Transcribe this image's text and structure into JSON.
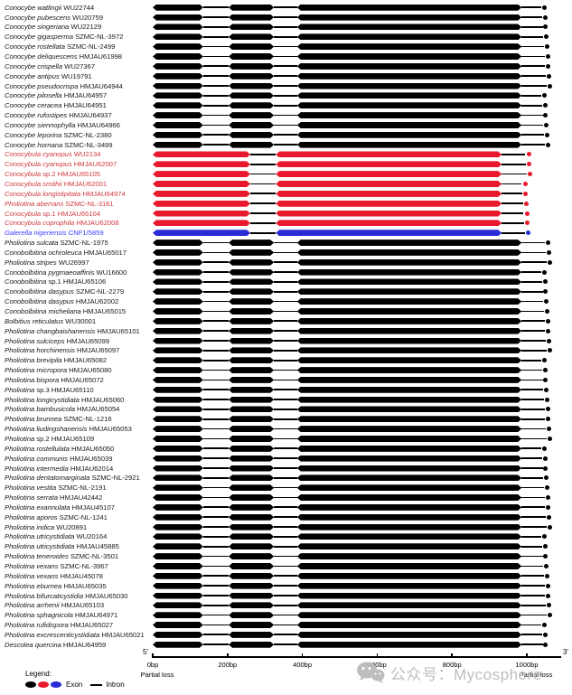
{
  "colors": {
    "exon": {
      "black": "#000000",
      "red": "#e8192c",
      "blue": "#2b2bd6"
    },
    "label": {
      "black": "#1a1a1a",
      "red": "#d23b40",
      "blue": "#4040ff"
    },
    "intron": "#000000",
    "watermark": "#b9b9b9"
  },
  "structures": {
    "standard": [
      {
        "t": "exon",
        "a": 0,
        "b": 135
      },
      {
        "t": "intron",
        "a": 135,
        "b": 203
      },
      {
        "t": "exon",
        "a": 203,
        "b": 324
      },
      {
        "t": "intron",
        "a": 324,
        "b": 386
      },
      {
        "t": "exon",
        "a": 386,
        "b": 986
      },
      {
        "t": "intron",
        "a": 986,
        "b": 1046
      },
      {
        "t": "dot",
        "a": 1054
      }
    ],
    "merged": [
      {
        "t": "exon",
        "a": 0,
        "b": 261
      },
      {
        "t": "intron",
        "a": 261,
        "b": 329
      },
      {
        "t": "exon",
        "a": 329,
        "b": 933
      },
      {
        "t": "intron",
        "a": 933,
        "b": 993
      },
      {
        "t": "dot",
        "a": 1002
      }
    ]
  },
  "rows": [
    {
      "s": "Conocybe watlingii",
      "p": "WU22744",
      "c": "black",
      "g": "standard"
    },
    {
      "s": "Conocybe pubescens",
      "p": "WU20759",
      "c": "black",
      "g": "standard"
    },
    {
      "s": "Conocybe singeriana",
      "p": "WU22129",
      "c": "black",
      "g": "standard"
    },
    {
      "s": "Conocybe gigasperma",
      "p": "SZMC-NL-3972",
      "c": "black",
      "g": "standard"
    },
    {
      "s": "Conocybe rostellata",
      "p": "SZMC-NL-2499",
      "c": "black",
      "g": "standard"
    },
    {
      "s": "Conocybe deliquescens",
      "p": "HMJAU61998",
      "c": "black",
      "g": "standard"
    },
    {
      "s": "Conocybe crispella",
      "p": "WU27367",
      "c": "black",
      "g": "standard"
    },
    {
      "s": "Conocybe antipus",
      "p": "WU19791",
      "c": "black",
      "g": "standard"
    },
    {
      "s": "Conocybe pseudocrispa",
      "p": "HMJAU64944",
      "c": "black",
      "g": "standard"
    },
    {
      "s": "Conocybe pilosella",
      "p": "HMJAU64957",
      "c": "black",
      "g": "standard"
    },
    {
      "s": "Conocybe ceracea",
      "p": "HMJAU64951",
      "c": "black",
      "g": "standard"
    },
    {
      "s": "Conocybe rufostipes",
      "p": "HMJAU64937",
      "c": "black",
      "g": "standard"
    },
    {
      "s": "Conocybe siennophylla",
      "p": "HMJAU64966",
      "c": "black",
      "g": "standard"
    },
    {
      "s": "Conocybe leporina",
      "p": "SZMC-NL-2380",
      "c": "black",
      "g": "standard"
    },
    {
      "s": "Conocybe hornana",
      "p": "SZMC-NL-3499",
      "c": "black",
      "g": "standard"
    },
    {
      "s": "Conocybula cyanopus",
      "p": "WU2134",
      "c": "red",
      "g": "merged"
    },
    {
      "s": "Conocybula cyanopus",
      "p": "HMJAU62007",
      "c": "red",
      "g": "merged"
    },
    {
      "s": "Conocybula",
      "p": "sp.2 HMJAU65105",
      "c": "red",
      "g": "merged"
    },
    {
      "s": "Conocybula smithii",
      "p": "HMJAU62001",
      "c": "red",
      "g": "merged"
    },
    {
      "s": "Conocybula longistipitata",
      "p": "HMJAU64974",
      "c": "red",
      "g": "merged"
    },
    {
      "s": "Pholiotina aberrans",
      "p": "SZMC-NL-3161",
      "c": "red",
      "g": "merged"
    },
    {
      "s": "Conocybula",
      "p": "sp.1 HMJAU65104",
      "c": "red",
      "g": "merged"
    },
    {
      "s": "Conocybula coprophila",
      "p": "HMJAU62008",
      "c": "red",
      "g": "merged"
    },
    {
      "s": "Galerella nigeriensis",
      "p": "CNF1/5859",
      "c": "blue",
      "g": "merged"
    },
    {
      "s": "Pholiotina sulcata",
      "p": "SZMC-NL-1975",
      "c": "black",
      "g": "standard"
    },
    {
      "s": "Conobolbitina ochroleuca",
      "p": "HMJAU65017",
      "c": "black",
      "g": "standard"
    },
    {
      "s": "Pholiotina stripes",
      "p": "WU26997",
      "c": "black",
      "g": "standard"
    },
    {
      "s": "Conobolbitina pygmaeoaffinis",
      "p": "WU16600",
      "c": "black",
      "g": "standard"
    },
    {
      "s": "Conobolbitina",
      "p": "sp.1 HMJAU65106",
      "c": "black",
      "g": "standard"
    },
    {
      "s": "Conobolbitina dasypus",
      "p": "SZMC-NL-2279",
      "c": "black",
      "g": "standard"
    },
    {
      "s": "Conobolbitina dasypus",
      "p": "HMJAU62002",
      "c": "black",
      "g": "standard"
    },
    {
      "s": "Conobolbitina micheliana",
      "p": "HMJAU65015",
      "c": "black",
      "g": "standard"
    },
    {
      "s": "Bolbitius reticulatus",
      "p": "WU30001",
      "c": "black",
      "g": "standard"
    },
    {
      "s": "Pholiotina changbaishanensis",
      "p": "HMJAU65101",
      "c": "black",
      "g": "standard"
    },
    {
      "s": "Pholiotina sulciceps",
      "p": "HMJAU65099",
      "c": "black",
      "g": "standard"
    },
    {
      "s": "Pholiotina horchinensis",
      "p": "HMJAU65097",
      "c": "black",
      "g": "standard"
    },
    {
      "s": "Pholiotina brevipila",
      "p": "HMJAU65082",
      "c": "black",
      "g": "standard"
    },
    {
      "s": "Pholiotina micropora",
      "p": "HMJAU65080",
      "c": "black",
      "g": "standard"
    },
    {
      "s": "Pholiotina bispora",
      "p": "HMJAU65072",
      "c": "black",
      "g": "standard"
    },
    {
      "s": "Pholiotina",
      "p": "sp.3 HMJAU65110",
      "c": "black",
      "g": "standard"
    },
    {
      "s": "Pholiotina longicystidiata",
      "p": "HMJAU65060",
      "c": "black",
      "g": "standard"
    },
    {
      "s": "Pholiotina bambusicola",
      "p": "HMJAU65054",
      "c": "black",
      "g": "standard"
    },
    {
      "s": "Pholiotina brunnea",
      "p": "SZMC-NL-1216",
      "c": "black",
      "g": "standard"
    },
    {
      "s": "Pholiotina liudingshanensis",
      "p": "HMJAU65053",
      "c": "black",
      "g": "standard"
    },
    {
      "s": "Pholiotina",
      "p": "sp.2 HMJAU65109",
      "c": "black",
      "g": "standard"
    },
    {
      "s": "Pholiotina rostellulata",
      "p": "HMJAU65050",
      "c": "black",
      "g": "standard"
    },
    {
      "s": "Pholiotina communis",
      "p": "HMJAU65039",
      "c": "black",
      "g": "standard"
    },
    {
      "s": "Pholiotina intermedia",
      "p": "HMJAU62014",
      "c": "black",
      "g": "standard"
    },
    {
      "s": "Pholiotina dentatomarginata",
      "p": "SZMC-NL-2921",
      "c": "black",
      "g": "standard"
    },
    {
      "s": "Pholiotina vestita",
      "p": "SZMC-NL-2191",
      "c": "black",
      "g": "standard"
    },
    {
      "s": "Pholiotina serrata",
      "p": "HMJAU42442",
      "c": "black",
      "g": "standard"
    },
    {
      "s": "Pholiotina exannulata",
      "p": "HMJAU45107",
      "c": "black",
      "g": "standard"
    },
    {
      "s": "Pholiotina aporos",
      "p": "SZMC-NL-1241",
      "c": "black",
      "g": "standard"
    },
    {
      "s": "Pholiotina indica",
      "p": "WU20891",
      "c": "black",
      "g": "standard"
    },
    {
      "s": "Pholiotina utricystidiata",
      "p": "WU20164",
      "c": "black",
      "g": "standard"
    },
    {
      "s": "Pholiotina utricystidiata",
      "p": "HMJAU45885",
      "c": "black",
      "g": "standard"
    },
    {
      "s": "Pholiotina teneroides",
      "p": "SZMC-NL-3501",
      "c": "black",
      "g": "standard"
    },
    {
      "s": "Pholiotina vexans",
      "p": "SZMC-NL-3967",
      "c": "black",
      "g": "standard"
    },
    {
      "s": "Pholiotina vexans",
      "p": "HMJAU45078",
      "c": "black",
      "g": "standard"
    },
    {
      "s": "Pholiotina eburnea",
      "p": "HMJAU65035",
      "c": "black",
      "g": "standard"
    },
    {
      "s": "Pholiotina bifurcaticystidia",
      "p": "HMJAU65030",
      "c": "black",
      "g": "standard"
    },
    {
      "s": "Pholiotina arrhenii",
      "p": "HMJAU65103",
      "c": "black",
      "g": "standard"
    },
    {
      "s": "Pholiotina sphagnicola",
      "p": "HMJAU64971",
      "c": "black",
      "g": "standard"
    },
    {
      "s": "Pholiotina rufidispora",
      "p": "HMJAU65027",
      "c": "black",
      "g": "standard"
    },
    {
      "s": "Pholiotina excrescenticystidiata",
      "p": "HMJAU65021",
      "c": "black",
      "g": "standard"
    },
    {
      "s": "Descolea quercina",
      "p": "HMJAU64959",
      "c": "black",
      "g": "standard"
    }
  ],
  "axis": {
    "five_prime": "5'",
    "three_prime": "3'",
    "ticks": [
      {
        "v": 0,
        "label": "0bp"
      },
      {
        "v": 200,
        "label": "200bp"
      },
      {
        "v": 400,
        "label": "400bp"
      },
      {
        "v": 600,
        "label": "600bp"
      },
      {
        "v": 800,
        "label": "800bp"
      },
      {
        "v": 1000,
        "label": "1000bp"
      }
    ],
    "partial_loss_left": "Partial loss",
    "partial_loss_right": "Partial loss"
  },
  "legend": {
    "title": "Legend:",
    "exon_label": "Exon",
    "intron_label": "Intron",
    "exon_colors": [
      "#000000",
      "#e8192c",
      "#2b2bd6"
    ]
  },
  "watermark": {
    "icon": "wechat-icon",
    "text": "公众号：Mycosphere"
  }
}
